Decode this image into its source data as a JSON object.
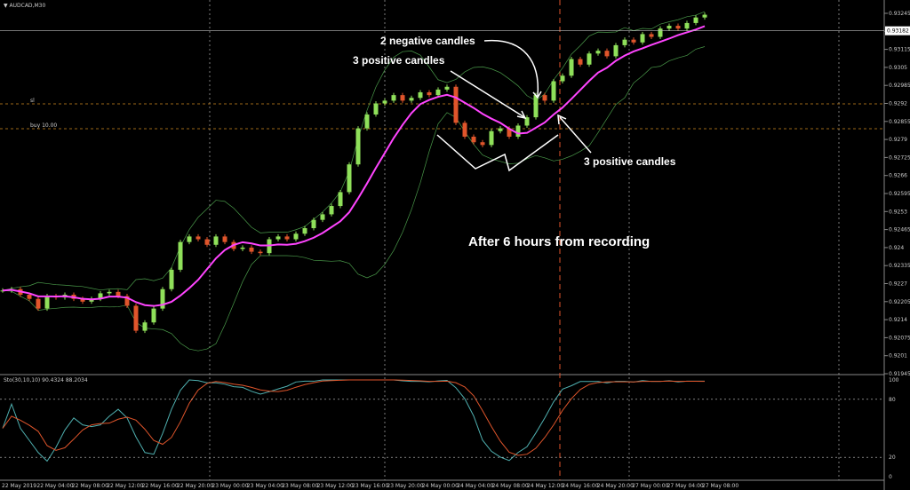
{
  "window": {
    "title": "▼ AUDCAD,M30"
  },
  "price_axis": {
    "ticks": [
      0.93245,
      0.9318,
      0.93115,
      0.9305,
      0.92985,
      0.9292,
      0.92855,
      0.9279,
      0.92725,
      0.9266,
      0.92595,
      0.9253,
      0.92465,
      0.924,
      0.92335,
      0.9227,
      0.92205,
      0.9214,
      0.92075,
      0.9201,
      0.91945
    ],
    "current": 0.93182
  },
  "time_axis": {
    "labels": [
      "22 May 2019",
      "22 May 04:00",
      "22 May 08:00",
      "22 May 12:00",
      "22 May 16:00",
      "22 May 20:00",
      "23 May 00:00",
      "23 May 04:00",
      "23 May 08:00",
      "23 May 12:00",
      "23 May 16:00",
      "23 May 20:00",
      "24 May 00:00",
      "24 May 04:00",
      "24 May 08:00",
      "24 May 12:00",
      "24 May 16:00",
      "24 May 20:00",
      "27 May 00:00",
      "27 May 04:00",
      "27 May 08:00"
    ]
  },
  "candles": [
    0.92245,
    0.9225,
    0.9223,
    0.92215,
    0.9218,
    0.92225,
    0.9222,
    0.9223,
    0.92215,
    0.92205,
    0.92215,
    0.92235,
    0.9224,
    0.92225,
    0.9219,
    0.921,
    0.9213,
    0.9218,
    0.9225,
    0.9232,
    0.9242,
    0.9244,
    0.9243,
    0.9241,
    0.9244,
    0.9242,
    0.92395,
    0.924,
    0.92385,
    0.9238,
    0.9243,
    0.9244,
    0.9243,
    0.9245,
    0.9247,
    0.925,
    0.9252,
    0.9255,
    0.926,
    0.927,
    0.9283,
    0.9288,
    0.9292,
    0.9293,
    0.9295,
    0.9293,
    0.9294,
    0.9296,
    0.9295,
    0.9297,
    0.9298,
    0.9285,
    0.928,
    0.9278,
    0.9277,
    0.9282,
    0.9283,
    0.928,
    0.9284,
    0.9287,
    0.9295,
    0.9293,
    0.93,
    0.9302,
    0.9308,
    0.9306,
    0.931,
    0.9311,
    0.9309,
    0.9313,
    0.9315,
    0.9314,
    0.9317,
    0.9316,
    0.9319,
    0.932,
    0.9319,
    0.9321,
    0.9323,
    0.9324
  ],
  "levels": {
    "sl": "sl",
    "buy": "buy 10.00"
  },
  "annotations": [
    "2 negative candles",
    "3 positive candles",
    "3 positive candles",
    "After 6 hours from recording"
  ],
  "indicator": {
    "label": "Sto(30,10,10) 90.4324 88.2034",
    "ticks": [
      100,
      80,
      20,
      0
    ]
  }
}
